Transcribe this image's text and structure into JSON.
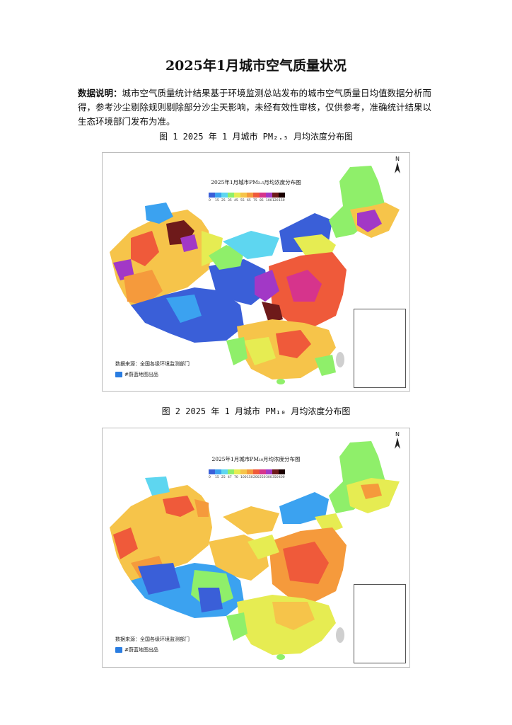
{
  "document": {
    "title": "2025年1月城市空气质量状况",
    "desc_label": "数据说明：",
    "desc_text": "城市空气质量统计结果基于环境监测总站发布的城市空气质量日均值数据分析而得，参考沙尘剔除规则剔除部分沙尘天影响，未经有效性审核，仅供参考，准确统计结果以生态环境部门发布为准。"
  },
  "figure1": {
    "caption": "图 1 2025 年 1 月城市 PM₂.₅ 月均浓度分布图",
    "map_title": "2025年1月城市PM₂.₅月均浓度分布图",
    "legend_colors": [
      "#3a5fd8",
      "#3ba2f0",
      "#5ed6f0",
      "#8fef6a",
      "#e6ec52",
      "#f6c44a",
      "#f59a3c",
      "#ef5a3a",
      "#d6348c",
      "#a238c6",
      "#6e1a1a",
      "#1a0000"
    ],
    "legend_ticks": [
      "0",
      "15",
      "25",
      "35",
      "45",
      "55",
      "65",
      "75",
      "85",
      "100",
      "120",
      "150"
    ],
    "source": "数据来源：全国各级环境监测部门",
    "brand": "#蔚蓝地图出品",
    "north": "N"
  },
  "figure2": {
    "caption": "图 2 2025 年 1 月城市 PM₁₀ 月均浓度分布图",
    "map_title": "2025年1月城市PM₁₀月均浓度分布图",
    "legend_colors": [
      "#3a5fd8",
      "#3ba2f0",
      "#5ed6f0",
      "#8fef6a",
      "#e6ec52",
      "#f6c44a",
      "#f59a3c",
      "#ef5a3a",
      "#d6348c",
      "#a238c6",
      "#6e1a1a",
      "#1a0000"
    ],
    "legend_ticks": [
      "0",
      "15",
      "25",
      "47",
      "70",
      "100",
      "150",
      "200",
      "250",
      "300",
      "350",
      "400"
    ],
    "source": "数据来源：全国各级环境监测部门",
    "brand": "#蔚蓝地图出品",
    "north": "N"
  }
}
